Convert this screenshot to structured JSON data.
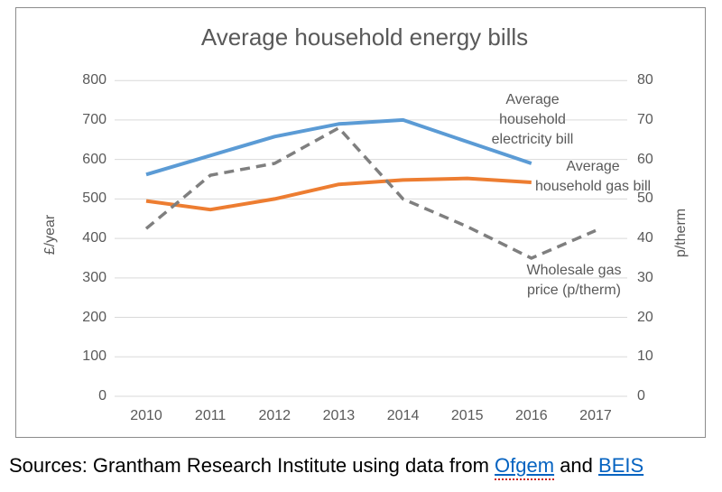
{
  "title": "Average household energy bills",
  "chart_data": {
    "type": "line",
    "x": [
      2010,
      2011,
      2012,
      2013,
      2014,
      2015,
      2016,
      2017
    ],
    "series": [
      {
        "name": "Average household electricity bill",
        "axis": "left",
        "color": "#5B9BD5",
        "style": "solid",
        "values": [
          562,
          610,
          658,
          690,
          700,
          645,
          590,
          null
        ]
      },
      {
        "name": "Average household gas bill",
        "axis": "left",
        "color": "#ED7D31",
        "style": "solid",
        "values": [
          495,
          473,
          500,
          537,
          548,
          552,
          542,
          null
        ]
      },
      {
        "name": "Wholesale gas price (p/therm)",
        "axis": "right",
        "color": "#7F7F7F",
        "style": "dashed",
        "values": [
          42.5,
          56,
          59,
          68,
          50,
          43,
          35,
          42
        ]
      }
    ],
    "left_axis": {
      "label": "£/year",
      "range": [
        0,
        800
      ],
      "ticks": [
        800,
        700,
        600,
        500,
        400,
        300,
        200,
        100,
        0
      ]
    },
    "right_axis": {
      "label": "p/therm",
      "range": [
        0,
        80
      ],
      "ticks": [
        80,
        70,
        60,
        50,
        40,
        30,
        20,
        10,
        0
      ]
    },
    "grid": "horizontal",
    "gridline_color": "#D9D9D9",
    "legend_position": "none (inline annotations)",
    "annotations": {
      "electricity": "Average\nhousehold\nelectricity bill",
      "gas": "Average\nhousehold gas bill",
      "wholesale": "Wholesale gas\nprice (p/therm)"
    }
  },
  "source": {
    "prefix": "Sources: Grantham Research Institute using data from ",
    "link_ofgem": "Ofgem",
    "and_text": " and ",
    "link_beis": "BEIS"
  },
  "colors": {
    "title_text": "#595959",
    "axis_text": "#595959",
    "link_blue": "#0563C1",
    "electricity_blue": "#5B9BD5",
    "gas_orange": "#ED7D31",
    "wholesale_gray": "#7F7F7F"
  }
}
